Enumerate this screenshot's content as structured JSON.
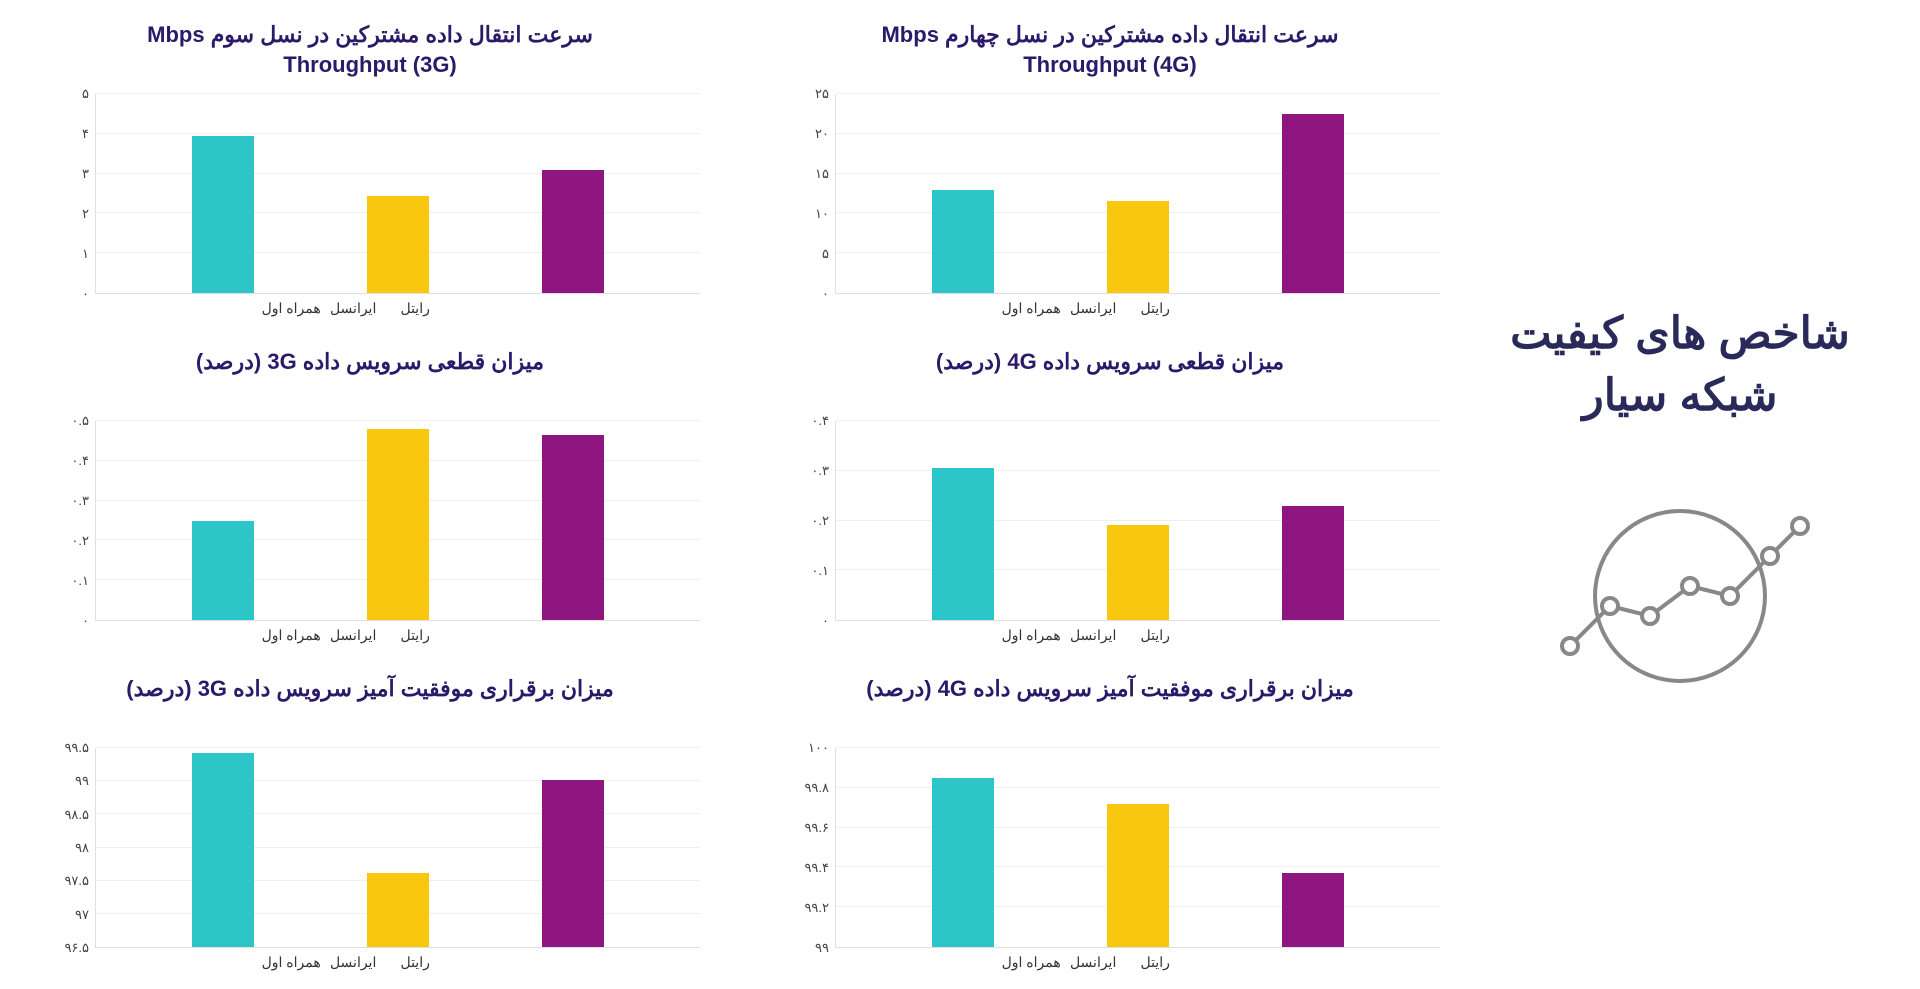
{
  "sidebar": {
    "title": "شاخص های کیفیت شبکه سیار"
  },
  "colors": {
    "title": "#2a1a6a",
    "sidebar_title": "#2a2a5a",
    "grid": "#eeeeee",
    "axis": "#e0e0e0",
    "tick_text": "#444444",
    "x_label": "#333333",
    "icon_stroke": "#888888"
  },
  "operators": [
    "همراه اول",
    "ایرانسل",
    "رایتل"
  ],
  "operator_colors": [
    "#2cc5c8",
    "#f9c80e",
    "#8f1580"
  ],
  "charts": [
    {
      "id": "throughput-4g",
      "title": "سرعت انتقال داده مشترکین در نسل چهارم Mbps\nThroughput (4G)",
      "type": "bar",
      "ymin": 0,
      "ymax": 25,
      "yticks": [
        0,
        5,
        10,
        15,
        20,
        25
      ],
      "ytick_labels": [
        "۰",
        "۵",
        "۱۰",
        "۱۵",
        "۲۰",
        "۲۵"
      ],
      "values": [
        13,
        11.5,
        22.5
      ]
    },
    {
      "id": "throughput-3g",
      "title": "سرعت انتقال داده مشترکین در نسل سوم Mbps\nThroughput (3G)",
      "type": "bar",
      "ymin": 0,
      "ymax": 5,
      "yticks": [
        0,
        1,
        2,
        3,
        4,
        5
      ],
      "ytick_labels": [
        "۰",
        "۱",
        "۲",
        "۳",
        "۴",
        "۵"
      ],
      "values": [
        3.95,
        2.45,
        3.1
      ]
    },
    {
      "id": "drop-4g",
      "title": "میزان قطعی سرویس داده 4G (درصد)",
      "type": "bar",
      "ymin": 0,
      "ymax": 0.4,
      "yticks": [
        0,
        0.1,
        0.2,
        0.3,
        0.4
      ],
      "ytick_labels": [
        "۰",
        "۰.۱",
        "۰.۲",
        "۰.۳",
        "۰.۴"
      ],
      "values": [
        0.305,
        0.19,
        0.23
      ]
    },
    {
      "id": "drop-3g",
      "title": "میزان قطعی سرویس داده 3G (درصد)",
      "type": "bar",
      "ymin": 0,
      "ymax": 0.5,
      "yticks": [
        0,
        0.1,
        0.2,
        0.3,
        0.4,
        0.5
      ],
      "ytick_labels": [
        "۰",
        "۰.۱",
        "۰.۲",
        "۰.۳",
        "۰.۴",
        "۰.۵"
      ],
      "values": [
        0.25,
        0.48,
        0.465
      ]
    },
    {
      "id": "success-4g",
      "title": "میزان برقراری موفقیت آمیز سرویس داده 4G (درصد)",
      "type": "bar",
      "ymin": 99,
      "ymax": 100,
      "yticks": [
        99,
        99.2,
        99.4,
        99.6,
        99.8,
        100
      ],
      "ytick_labels": [
        "۹۹",
        "۹۹.۲",
        "۹۹.۴",
        "۹۹.۶",
        "۹۹.۸",
        "۱۰۰"
      ],
      "values": [
        99.85,
        99.72,
        99.37
      ]
    },
    {
      "id": "success-3g",
      "title": "میزان برقراری موفقیت آمیز سرویس داده 3G (درصد)",
      "type": "bar",
      "ymin": 96.5,
      "ymax": 99.5,
      "yticks": [
        96.5,
        97,
        97.5,
        98,
        98.5,
        99,
        99.5
      ],
      "ytick_labels": [
        "۹۶.۵",
        "۹۷",
        "۹۷.۵",
        "۹۸",
        "۹۸.۵",
        "۹۹",
        "۹۹.۵"
      ],
      "values": [
        99.43,
        97.62,
        99.02
      ]
    }
  ]
}
